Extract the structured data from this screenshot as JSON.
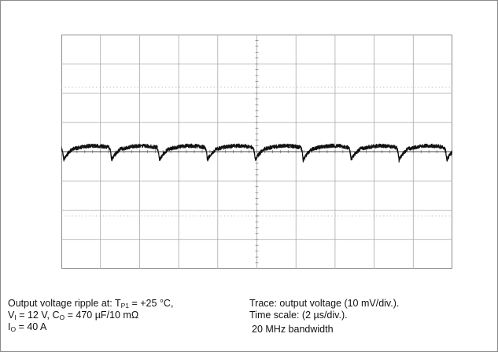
{
  "chart_data": {
    "type": "line",
    "title": "",
    "xlabel": "",
    "ylabel": "",
    "grid": true,
    "x_divisions": 10,
    "y_divisions": 8,
    "x_scale_us_per_div": 2,
    "y_scale_mV_per_div": 10,
    "xlim_us": [
      0,
      20
    ],
    "ylim_mV": [
      -40,
      40
    ],
    "period_us": 2.45,
    "first_trough_us": 0.12,
    "trough_mV": -3.0,
    "peak_mV": 2.0,
    "trough_decay_us": 0.45,
    "channel_marker": "1",
    "series": [
      {
        "x": [
          0.0,
          0.12,
          0.35,
          0.6,
          0.9,
          1.3,
          1.7,
          2.0,
          2.3,
          2.57,
          2.8,
          3.05,
          3.35,
          3.75,
          4.15,
          4.45,
          4.75,
          5.02,
          5.25,
          5.5,
          5.8,
          6.2,
          6.6,
          6.9,
          7.2,
          7.47,
          7.7,
          7.95,
          8.25,
          8.65,
          9.05,
          9.35,
          9.65,
          9.92,
          10.15,
          10.4,
          10.7,
          11.1,
          11.5,
          11.8,
          12.1,
          12.37,
          12.6,
          12.85,
          13.15,
          13.55,
          13.95,
          14.25,
          14.55,
          14.82,
          15.05,
          15.3,
          15.6,
          16.0,
          16.4,
          16.7,
          17.0,
          17.27,
          17.5,
          17.75,
          18.05,
          18.45,
          18.85,
          19.15,
          19.45,
          19.72,
          20.0
        ],
        "y_mV": [
          0.8,
          -3.0,
          -1.0,
          0.2,
          0.9,
          1.5,
          1.9,
          1.8,
          1.2,
          -3.0,
          -1.0,
          0.2,
          0.9,
          1.5,
          1.9,
          1.8,
          1.2,
          -3.0,
          -1.0,
          0.2,
          0.9,
          1.5,
          1.9,
          1.8,
          1.2,
          -3.0,
          -1.0,
          0.2,
          0.9,
          1.5,
          1.9,
          1.8,
          1.2,
          -3.0,
          -1.0,
          0.2,
          0.9,
          1.5,
          1.9,
          1.8,
          1.2,
          -3.0,
          -1.0,
          0.2,
          0.9,
          1.5,
          1.9,
          1.8,
          1.2,
          -3.0,
          -1.0,
          0.2,
          0.9,
          1.5,
          1.9,
          1.8,
          1.2,
          -3.0,
          -1.0,
          0.2,
          0.9,
          1.5,
          1.9,
          1.8,
          1.2,
          -3.0,
          0.3
        ]
      }
    ]
  },
  "caption": {
    "left": {
      "line1_text": "Output voltage ripple at: T",
      "line1_sub": "P1",
      "line1_rest": " = +25 °C,",
      "line2_a": "V",
      "line2_a_sub": "I",
      "line2_b": " =  12 V, C",
      "line2_b_sub": "O",
      "line2_c": " = 470 µF/10 mΩ",
      "line3_a": "I",
      "line3_a_sub": "O",
      "line3_b": " = 40 A"
    },
    "right": {
      "trace": "Trace: output voltage (10 mV/div.).",
      "time_scale": "Time scale: (2 µs/div.).",
      "bandwidth": "20 MHz bandwidth"
    }
  }
}
